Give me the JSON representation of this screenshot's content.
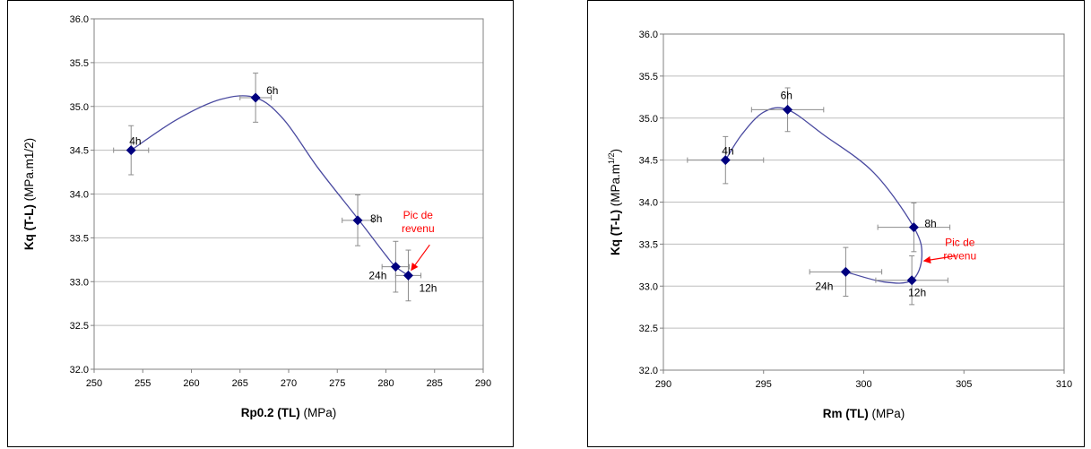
{
  "chart_data": [
    {
      "type": "scatter",
      "xlabel": "Rp0.2 (TL)",
      "xunit": "(MPa)",
      "ylabel": "Kq (T-L)",
      "yunit": "(MPa.m1/2)",
      "ylabel_superscript": "",
      "xlim": [
        250,
        290
      ],
      "ylim": [
        32.0,
        36.0
      ],
      "xticks": [
        "250",
        "255",
        "260",
        "265",
        "270",
        "275",
        "280",
        "285",
        "290"
      ],
      "yticks": [
        "32.0",
        "32.5",
        "33.0",
        "33.5",
        "34.0",
        "34.5",
        "35.0",
        "35.5",
        "36.0"
      ],
      "grid": "horizontal",
      "marker_color": "#00007f",
      "curve_color": "#4a4aa0",
      "errorbar_color": "#8c8c8c",
      "annotation_color": "#ff0000",
      "points": [
        {
          "label": "4h",
          "x": 253.8,
          "y": 34.5,
          "xerr": 1.8,
          "yerr": 0.28
        },
        {
          "label": "6h",
          "x": 266.6,
          "y": 35.1,
          "xerr": 1.6,
          "yerr": 0.28
        },
        {
          "label": "8h",
          "x": 277.1,
          "y": 33.7,
          "xerr": 1.6,
          "yerr": 0.29
        },
        {
          "label": "24h",
          "x": 281.0,
          "y": 33.17,
          "xerr": 1.4,
          "yerr": 0.29
        },
        {
          "label": "12h",
          "x": 282.3,
          "y": 33.07,
          "xerr": 1.3,
          "yerr": 0.29
        }
      ],
      "curve": [
        [
          253.8,
          34.5
        ],
        [
          258.5,
          34.85
        ],
        [
          263.0,
          35.08
        ],
        [
          266.6,
          35.1
        ],
        [
          269.5,
          34.85
        ],
        [
          273.0,
          34.3
        ],
        [
          277.1,
          33.72
        ],
        [
          280.0,
          33.3
        ],
        [
          281.0,
          33.17
        ],
        [
          282.3,
          33.07
        ]
      ],
      "annotation": {
        "lines": [
          "Pic de",
          "revenu"
        ],
        "text_x": 283.3,
        "text_y": 33.72,
        "arrow_from": [
          284.5,
          33.42
        ],
        "arrow_to": [
          282.6,
          33.13
        ]
      }
    },
    {
      "type": "scatter",
      "xlabel": "Rm (TL)",
      "xunit": "(MPa)",
      "ylabel": "Kq (T-L)",
      "yunit": "(MPa.m",
      "ylabel_superscript": "1/2",
      "ylabel_suffix": ")",
      "xlim": [
        290,
        310
      ],
      "ylim": [
        32.0,
        36.0
      ],
      "xticks": [
        "290",
        "295",
        "300",
        "305",
        "310"
      ],
      "yticks": [
        "32.0",
        "32.5",
        "33.0",
        "33.5",
        "34.0",
        "34.5",
        "35.0",
        "35.5",
        "36.0"
      ],
      "grid": "horizontal",
      "marker_color": "#00007f",
      "curve_color": "#4a4aa0",
      "errorbar_color": "#8c8c8c",
      "annotation_color": "#ff0000",
      "points": [
        {
          "label": "4h",
          "x": 293.1,
          "y": 34.5,
          "xerr": 1.9,
          "yerr": 0.28
        },
        {
          "label": "6h",
          "x": 296.2,
          "y": 35.1,
          "xerr": 1.8,
          "yerr": 0.26
        },
        {
          "label": "8h",
          "x": 302.5,
          "y": 33.7,
          "xerr": 1.8,
          "yerr": 0.29
        },
        {
          "label": "24h",
          "x": 299.1,
          "y": 33.17,
          "xerr": 1.8,
          "yerr": 0.29
        },
        {
          "label": "12h",
          "x": 302.4,
          "y": 33.07,
          "xerr": 1.8,
          "yerr": 0.29
        }
      ],
      "curve": [
        [
          293.1,
          34.5
        ],
        [
          293.9,
          34.8
        ],
        [
          295.0,
          35.07
        ],
        [
          296.2,
          35.1
        ],
        [
          298.0,
          34.8
        ],
        [
          300.5,
          34.35
        ],
        [
          302.5,
          33.7
        ],
        [
          302.9,
          33.35
        ],
        [
          302.4,
          33.07
        ],
        [
          301.0,
          33.05
        ],
        [
          299.1,
          33.17
        ]
      ],
      "annotation": {
        "lines": [
          "Pic de",
          "revenu"
        ],
        "text_x": 304.8,
        "text_y": 33.48,
        "arrow_from": [
          304.6,
          33.36
        ],
        "arrow_to": [
          303.0,
          33.3
        ]
      }
    }
  ]
}
